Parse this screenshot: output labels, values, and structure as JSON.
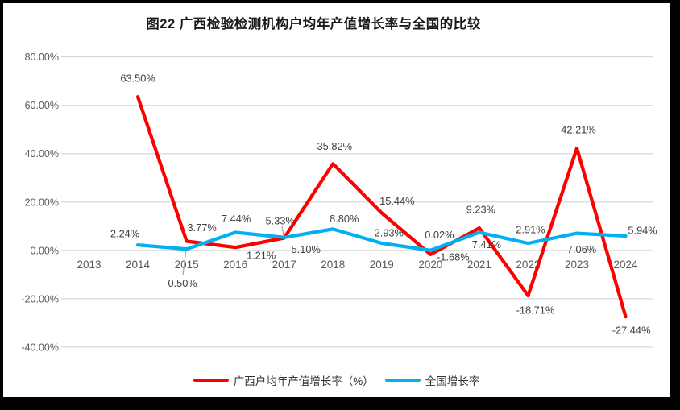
{
  "chart_data": {
    "type": "line",
    "title": "图22 广西检验检测机构户均年产值增长率与全国的比较",
    "categories": [
      "2013",
      "2014",
      "2015",
      "2016",
      "2017",
      "2018",
      "2019",
      "2020",
      "2021",
      "2022",
      "2023",
      "2024"
    ],
    "series": [
      {
        "name": "广西户均年产值增长率（%）",
        "color": "#FF0000",
        "values": [
          null,
          63.5,
          3.77,
          1.21,
          5.1,
          35.82,
          15.44,
          -1.68,
          9.23,
          -18.71,
          42.21,
          -27.44
        ]
      },
      {
        "name": "全国增长率",
        "color": "#00B0F0",
        "values": [
          null,
          2.24,
          0.5,
          7.44,
          5.33,
          8.8,
          2.93,
          0.02,
          7.41,
          2.91,
          7.06,
          5.94
        ]
      }
    ],
    "y_ticks": [
      80,
      60,
      40,
      20,
      0,
      -20,
      -40
    ],
    "ylim": [
      -40,
      80
    ],
    "value_suffix": "%",
    "grid": true,
    "legend_position": "bottom",
    "gridline_color": "#D9D9D9",
    "axis_text_color": "#595959",
    "data_label_color": "#404040",
    "leader_line_color": "#A6A6A6",
    "frame_color": "#000000",
    "background_color": "#FFFFFF"
  }
}
